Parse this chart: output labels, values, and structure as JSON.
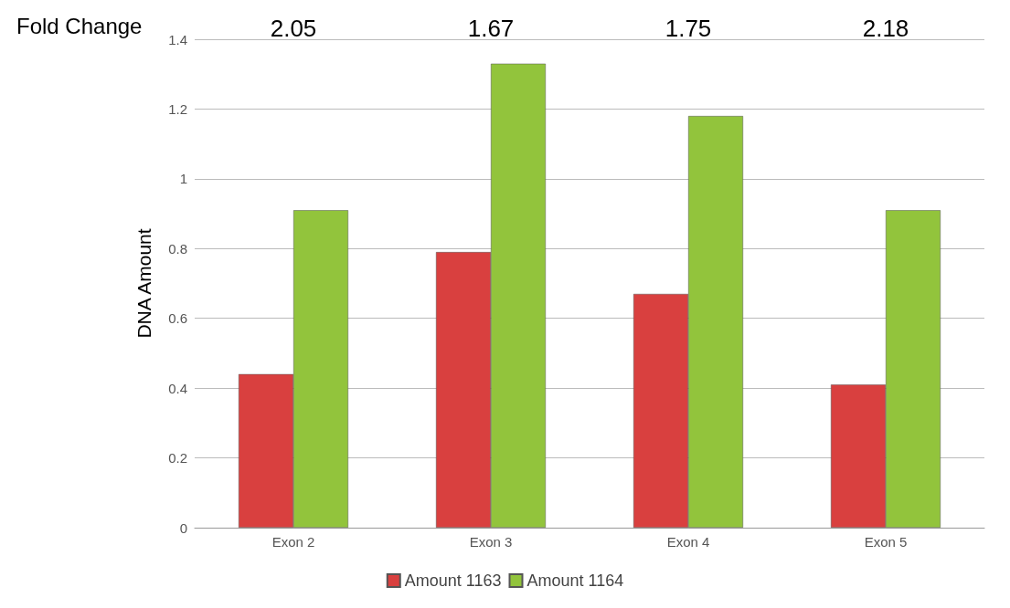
{
  "chart_data": {
    "type": "bar",
    "ylabel": "DNA Amount",
    "categories": [
      "Exon 2",
      "Exon 3",
      "Exon 4",
      "Exon 5"
    ],
    "series": [
      {
        "name": "Amount 1163",
        "color": "#d9403f",
        "values": [
          0.44,
          0.79,
          0.67,
          0.41
        ]
      },
      {
        "name": "Amount 1164",
        "color": "#92c43c",
        "values": [
          0.91,
          1.33,
          1.18,
          0.91
        ]
      }
    ],
    "ylim": [
      0,
      1.4
    ],
    "yticks": [
      0,
      0.2,
      0.4,
      0.6,
      0.8,
      1,
      1.2,
      1.4
    ],
    "grid": "y",
    "legend": "bottom",
    "annotations": [
      "Fold Change",
      "2.05",
      "1.67",
      "1.75",
      "2.18"
    ]
  }
}
